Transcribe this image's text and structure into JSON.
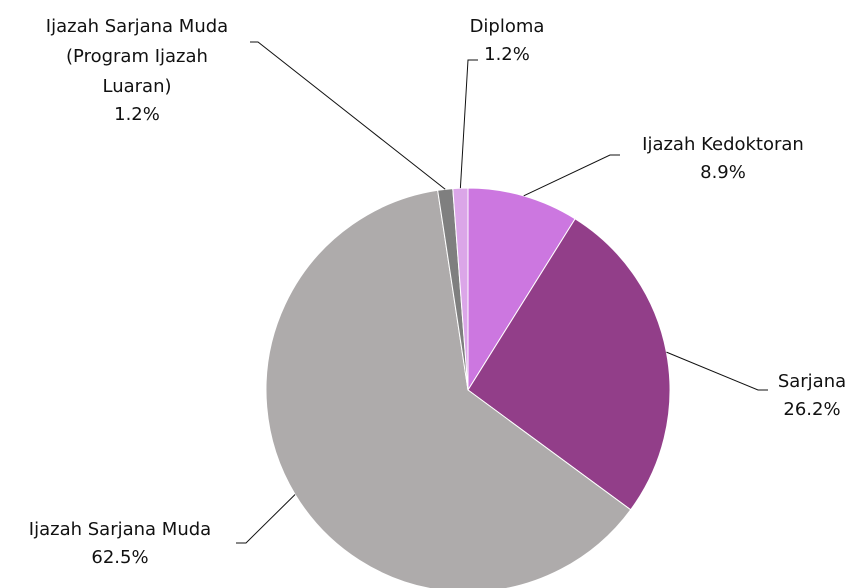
{
  "chart_data": {
    "type": "pie",
    "categories": [
      "Ijazah Kedoktoran",
      "Sarjana",
      "Ijazah Sarjana Muda",
      "Ijazah Sarjana Muda (Program Ijazah Luaran)",
      "Diploma"
    ],
    "values": [
      8.9,
      26.2,
      62.5,
      1.2,
      1.2
    ],
    "value_labels": [
      "8.9%",
      "26.2%",
      "62.5%",
      "1.2%",
      "1.2%"
    ],
    "colors": [
      "#cc77e0",
      "#923e89",
      "#aeabab",
      "#7f7f7f",
      "#dba6e8"
    ]
  }
}
